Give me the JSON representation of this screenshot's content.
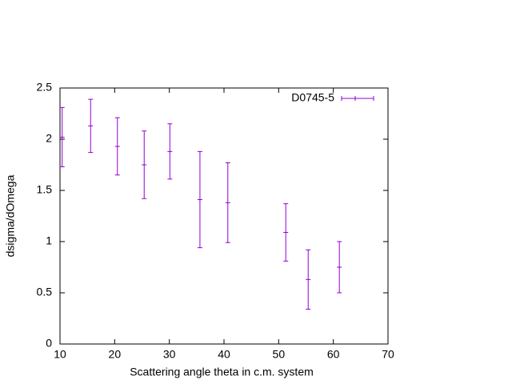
{
  "chart_data": {
    "type": "errorbar",
    "xlabel": "Scattering angle theta in c.m. system",
    "ylabel": "dsigma/dOmega",
    "xlim": [
      10,
      70
    ],
    "xticks": [
      10,
      20,
      30,
      40,
      50,
      60,
      70
    ],
    "ylim": [
      0,
      2.5
    ],
    "yticks": [
      0,
      0.5,
      1,
      1.5,
      2,
      2.5
    ],
    "grid": false,
    "legend": "top-right",
    "series": [
      {
        "name": "D0745-5",
        "color": "#9400d3",
        "x": [
          10.4,
          15.6,
          20.5,
          25.4,
          30.1,
          35.6,
          40.7,
          51.3,
          55.4,
          61.1
        ],
        "values": [
          2.02,
          2.13,
          1.93,
          1.75,
          1.88,
          1.41,
          1.38,
          1.09,
          0.63,
          0.75
        ],
        "errors": [
          0.29,
          0.26,
          0.28,
          0.33,
          0.27,
          0.47,
          0.39,
          0.28,
          0.29,
          0.25
        ]
      }
    ]
  }
}
